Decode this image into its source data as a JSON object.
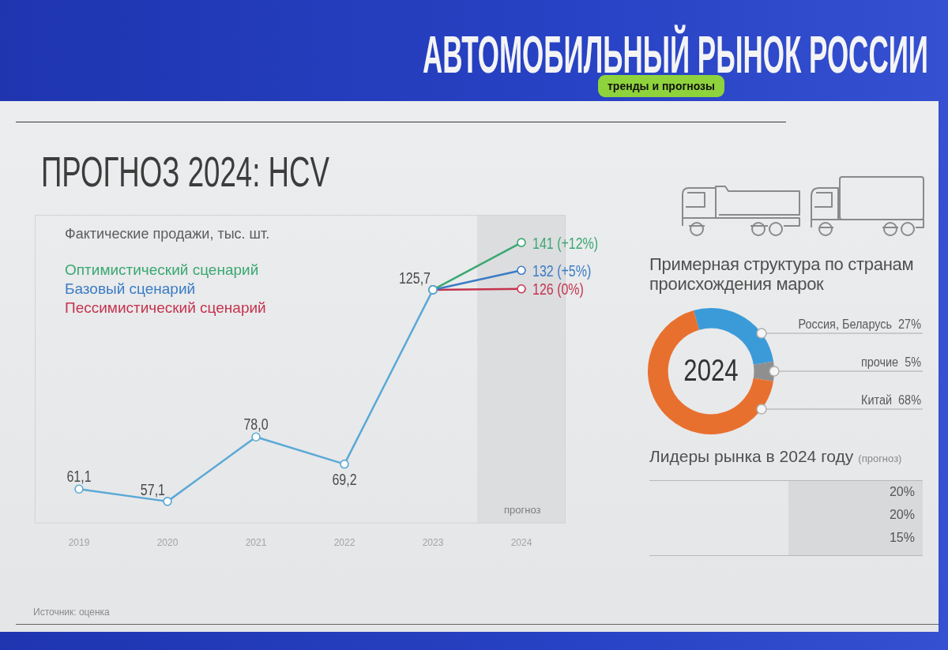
{
  "chart_data": [
    {
      "type": "line",
      "title": "ПРОГНОЗ 2024: HCV",
      "categories": [
        "2019",
        "2020",
        "2021",
        "2022",
        "2023",
        "2024"
      ],
      "series": [
        {
          "color": "#5aa9d6",
          "values": [
            61.1,
            57.1,
            78.0,
            69.2,
            125.7,
            null
          ],
          "value_labels": [
            "61,1",
            "57,1",
            "78,0",
            "69,2",
            "125,7",
            null
          ]
        },
        {
          "name": "Оптимистический сценарий",
          "color": "#3aa872",
          "values": [
            null,
            null,
            null,
            null,
            125.7,
            141
          ],
          "value_labels": [
            null,
            null,
            null,
            null,
            null,
            "141 (+12%)"
          ]
        },
        {
          "name": "Базовый сценарий",
          "color": "#3a7cc4",
          "values": [
            null,
            null,
            null,
            null,
            125.7,
            132
          ],
          "value_labels": [
            null,
            null,
            null,
            null,
            null,
            "132 (+5%)"
          ]
        },
        {
          "name": "Пессимистический сценарий",
          "color": "#c4344e",
          "values": [
            null,
            null,
            null,
            null,
            125.7,
            126
          ],
          "value_labels": [
            null,
            null,
            null,
            null,
            null,
            "126 (0%)"
          ]
        }
      ],
      "legend": "top left",
      "legend_title": "Фактические продажи, тыс. шт.",
      "marker": "circle",
      "tick_labels": "x",
      "bands": [
        {
          "axis": "x",
          "from": "2024",
          "to": "2024",
          "color": "#dcdddf"
        }
      ],
      "annotations": [
        "АВТОМОБИЛЬНЫЙ РЫНОК РОССИИ",
        "тренды и прогнозы",
        "Источник: оценка",
        "прогноз"
      ]
    },
    {
      "type": "donut",
      "title": "Примерная структура по странам происхождения марок",
      "categories": [
        "Россия, Беларусь",
        "прочие",
        "Китай"
      ],
      "values": [
        27,
        5,
        68
      ],
      "colors": [
        "#3b9bd9",
        "#8f8f8f",
        "#e8702f"
      ],
      "value_labels": [
        "27%",
        "5%",
        "68%"
      ],
      "annotations": [
        "2024"
      ]
    },
    {
      "type": "other",
      "title": "Лидеры рынка в 2024 году",
      "subtitle": "(прогноз)",
      "annotations": [
        "20%",
        "20%",
        "15%"
      ]
    }
  ]
}
